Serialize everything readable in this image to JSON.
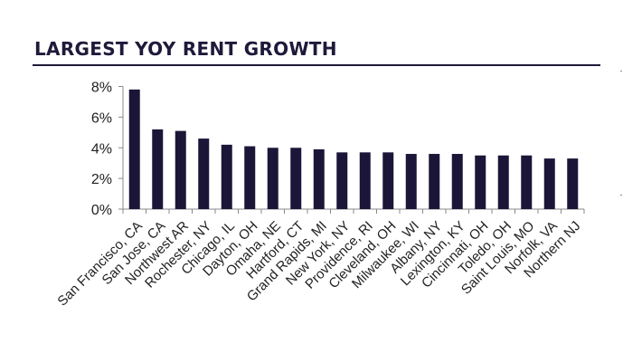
{
  "title": "LARGEST YOY RENT GROWTH",
  "colors": {
    "bar": "#1b1638",
    "title": "#1e1a3a",
    "axis": "#888888"
  },
  "chart_data": {
    "type": "bar",
    "title": "LARGEST YOY RENT GROWTH",
    "xlabel": "",
    "ylabel": "",
    "ylim": [
      0,
      8
    ],
    "yticks": [
      0,
      2,
      4,
      6,
      8
    ],
    "ytick_labels": [
      "0%",
      "2%",
      "4%",
      "6%",
      "8%"
    ],
    "grid": false,
    "legend": "none",
    "categories": [
      "San Francisco, CA",
      "San Jose, CA",
      "Northwest AR",
      "Rochester, NY",
      "Chicago, IL",
      "Dayton, OH",
      "Omaha, NE",
      "Hartford, CT",
      "Grand Rapids, MI",
      "New York, NY",
      "Providence, RI",
      "Cleveland, OH",
      "Milwaukee, WI",
      "Albany, NY",
      "Lexington, KY",
      "Cincinnati, OH",
      "Toledo, OH",
      "Saint Louis, MO",
      "Norfolk, VA",
      "Northern NJ"
    ],
    "values": [
      7.8,
      5.2,
      5.1,
      4.6,
      4.2,
      4.1,
      4.0,
      4.0,
      3.9,
      3.7,
      3.7,
      3.7,
      3.6,
      3.6,
      3.6,
      3.5,
      3.5,
      3.5,
      3.3,
      3.3
    ]
  }
}
